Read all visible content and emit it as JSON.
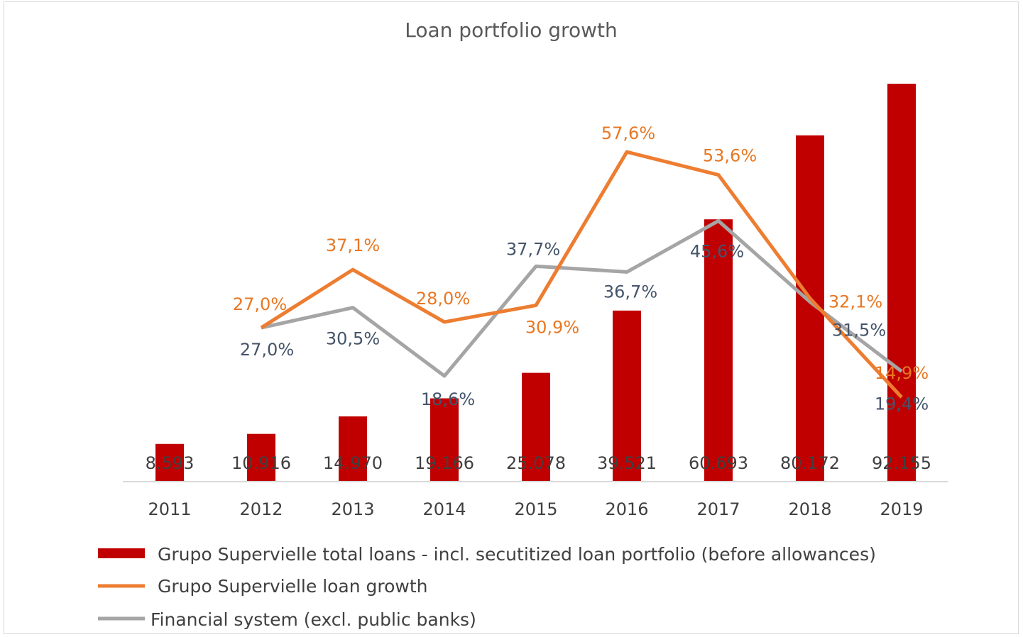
{
  "chart_data": {
    "type": "bar+line",
    "title": "Loan portfolio growth",
    "categories": [
      "2011",
      "2012",
      "2013",
      "2014",
      "2015",
      "2016",
      "2017",
      "2018",
      "2019"
    ],
    "series": [
      {
        "name": "Grupo Supervielle total loans - incl. secutitized loan portfolio (before allowances)",
        "type": "bar",
        "color": "#c00000",
        "values": [
          8593,
          10916,
          14970,
          19166,
          25078,
          39521,
          60693,
          80172,
          92155
        ],
        "labels": [
          "8.593",
          "10.916",
          "14.970",
          "19.166",
          "25.078",
          "39.521",
          "60.693",
          "80.172",
          "92.155"
        ]
      },
      {
        "name": "Grupo Supervielle loan growth",
        "type": "line",
        "color": "#ed7d31",
        "unit": "%",
        "values": [
          null,
          27.0,
          37.1,
          28.0,
          30.9,
          57.6,
          53.6,
          32.1,
          14.9
        ],
        "labels": [
          "",
          "27,0%",
          "37,1%",
          "28,0%",
          "30,9%",
          "57,6%",
          "53,6%",
          "32,1%",
          "14,9%"
        ]
      },
      {
        "name": "Financial system (excl. public banks)",
        "type": "line",
        "color": "#a5a5a5",
        "unit": "%",
        "values": [
          null,
          27.0,
          30.5,
          18.6,
          37.7,
          36.7,
          45.6,
          31.5,
          19.4
        ],
        "labels": [
          "",
          "27,0%",
          "30,5%",
          "18,6%",
          "37,7%",
          "36,7%",
          "45,6%",
          "31,5%",
          "19,4%"
        ]
      }
    ],
    "legend_position": "bottom",
    "grid": false
  }
}
